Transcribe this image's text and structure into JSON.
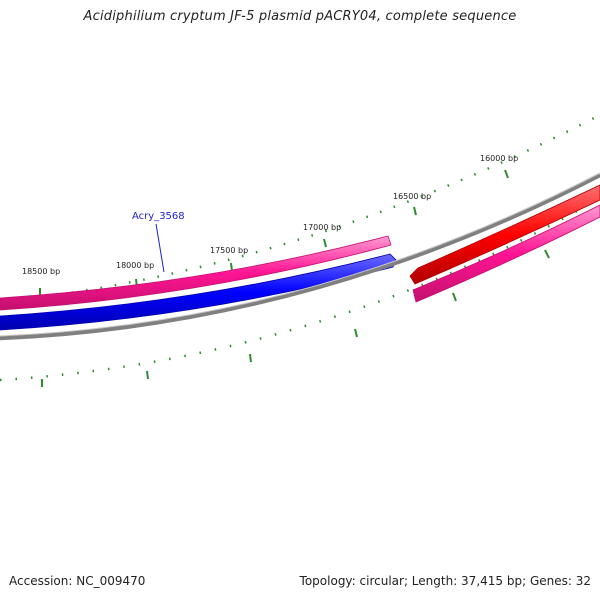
{
  "title": "Acidiphilium cryptum JF-5 plasmid pACRY04, complete sequence",
  "footer": {
    "accession": "Accession: NC_009470",
    "summary": "Topology: circular; Length: 37,415 bp; Genes: 32"
  },
  "map": {
    "ticks": [
      {
        "bp": 16000,
        "label": "16000 bp"
      },
      {
        "bp": 16500,
        "label": "16500 bp"
      },
      {
        "bp": 17000,
        "label": "17000 bp"
      },
      {
        "bp": 17500,
        "label": "17500 bp"
      },
      {
        "bp": 18000,
        "label": "18000 bp"
      },
      {
        "bp": 18500,
        "label": "18500 bp"
      }
    ],
    "gene_labels": [
      {
        "name": "Acry_3568"
      }
    ],
    "colors": {
      "backbone": "#808080",
      "tick": "#2e8b2e",
      "forward_gene": "#ff1493",
      "reverse_gene": "#0000ff",
      "red_gene": "#ff0000",
      "label_line": "#1f1fd0"
    }
  }
}
